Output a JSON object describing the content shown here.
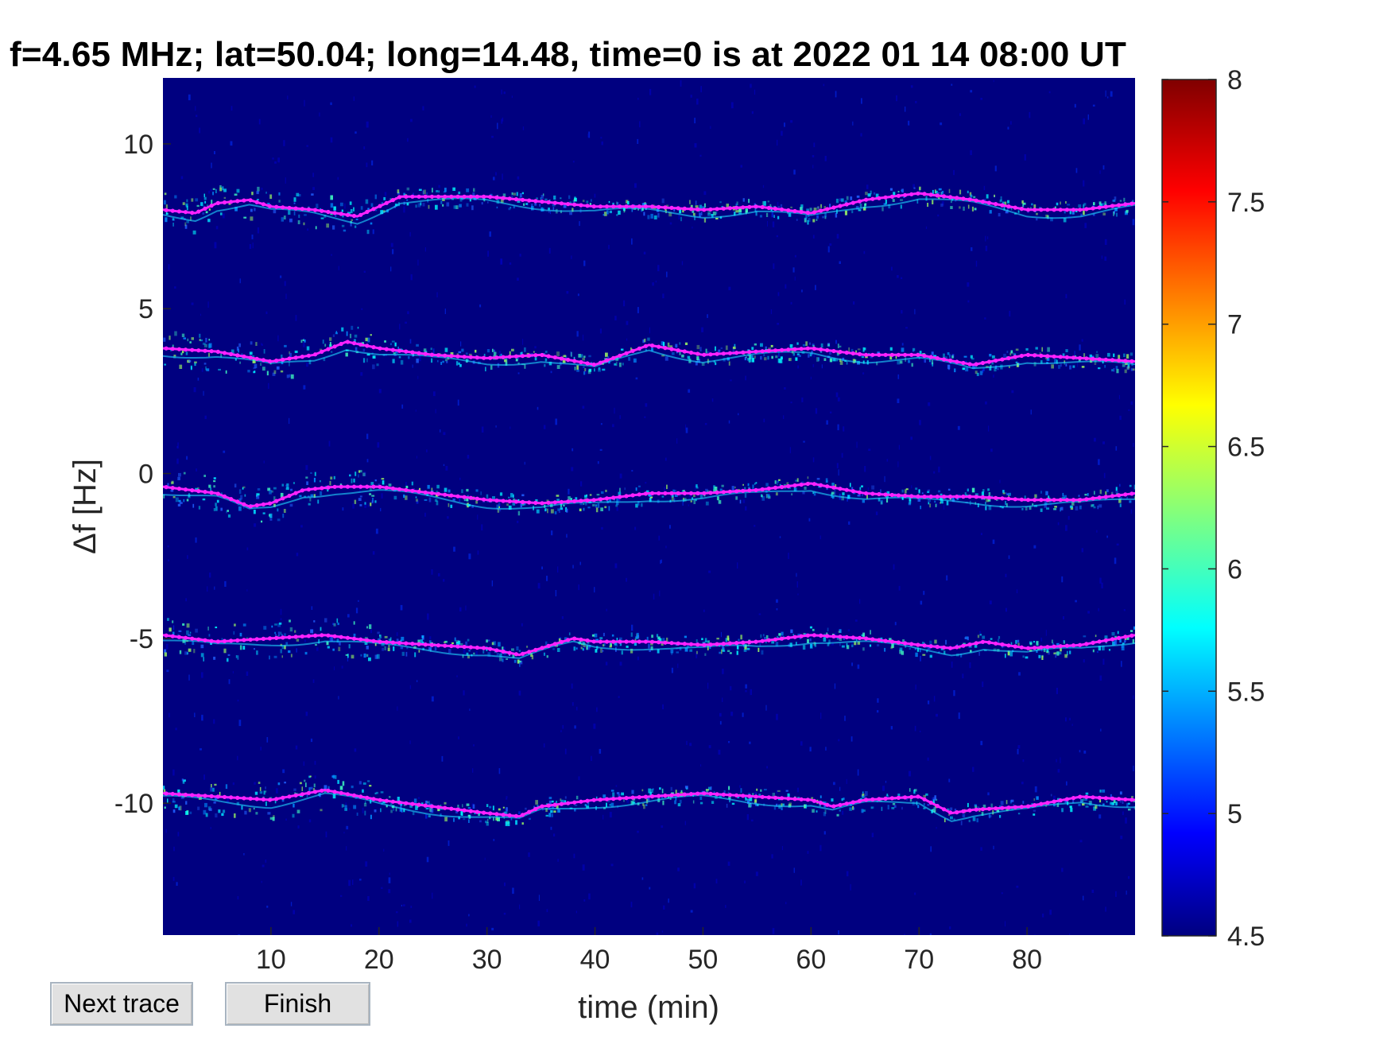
{
  "window": {
    "title": "f=4.65 MHz;  lat=50.04; long=14.48, time=0 is at 2022 01 14 08:00 UT"
  },
  "buttons": {
    "next_trace_label": "Next trace",
    "finish_label": "Finish"
  },
  "colors": {
    "background": "#000080",
    "trace": "#ff22ff",
    "colormap": [
      "#00008f",
      "#0000ff",
      "#0080ff",
      "#00ffff",
      "#80ff80",
      "#ffff00",
      "#ff8000",
      "#ff0000",
      "#800000"
    ]
  },
  "chart_data": {
    "type": "heatmap",
    "title": "f=4.65 MHz;  lat=50.04; long=14.48, time=0 is at 2022 01 14 08:00 UT",
    "xlabel": "time (min)",
    "ylabel": "Δf [Hz]",
    "xlim": [
      0,
      90
    ],
    "ylim": [
      -14,
      12
    ],
    "x_ticks": [
      10,
      20,
      30,
      40,
      50,
      60,
      70,
      80
    ],
    "y_ticks": [
      10,
      5,
      0,
      -5,
      -10
    ],
    "x_tick_labels": [
      "10",
      "20",
      "30",
      "40",
      "50",
      "60",
      "70",
      "80"
    ],
    "y_tick_labels": [
      "10",
      "5",
      "0",
      "-5",
      "-10"
    ],
    "colorbar": {
      "range": [
        4.5,
        8
      ],
      "ticks": [
        8,
        7.5,
        7,
        6.5,
        6,
        5.5,
        5,
        4.5
      ],
      "tick_labels": [
        "8",
        "7.5",
        "7",
        "6.5",
        "6",
        "5.5",
        "5",
        "4.5"
      ]
    },
    "series": [
      {
        "x": [
          0,
          3,
          5,
          8,
          10,
          14,
          18,
          22,
          30,
          40,
          45,
          50,
          55,
          60,
          65,
          70,
          75,
          80,
          85,
          90
        ],
        "y": [
          8.0,
          7.9,
          8.2,
          8.3,
          8.1,
          8.0,
          7.8,
          8.4,
          8.4,
          8.1,
          8.1,
          8.0,
          8.1,
          7.9,
          8.3,
          8.5,
          8.3,
          8.0,
          8.0,
          8.2
        ]
      },
      {
        "x": [
          0,
          5,
          10,
          14,
          17,
          20,
          25,
          30,
          35,
          40,
          45,
          50,
          55,
          60,
          65,
          70,
          75,
          80,
          85,
          90
        ],
        "y": [
          3.8,
          3.7,
          3.4,
          3.6,
          4.0,
          3.8,
          3.6,
          3.5,
          3.6,
          3.3,
          3.9,
          3.6,
          3.7,
          3.8,
          3.6,
          3.6,
          3.3,
          3.6,
          3.5,
          3.4
        ]
      },
      {
        "x": [
          0,
          5,
          8,
          10,
          13,
          16,
          20,
          25,
          30,
          35,
          40,
          45,
          50,
          55,
          60,
          65,
          70,
          75,
          80,
          85,
          90
        ],
        "y": [
          -0.4,
          -0.6,
          -1.0,
          -0.9,
          -0.5,
          -0.4,
          -0.4,
          -0.6,
          -0.8,
          -0.9,
          -0.8,
          -0.6,
          -0.6,
          -0.5,
          -0.3,
          -0.6,
          -0.7,
          -0.7,
          -0.8,
          -0.8,
          -0.6
        ]
      },
      {
        "x": [
          0,
          5,
          10,
          15,
          20,
          25,
          30,
          33,
          36,
          38,
          40,
          45,
          50,
          55,
          60,
          65,
          70,
          73,
          76,
          80,
          85,
          90
        ],
        "y": [
          -4.9,
          -5.1,
          -5.0,
          -4.9,
          -5.1,
          -5.2,
          -5.3,
          -5.5,
          -5.2,
          -5.0,
          -5.1,
          -5.1,
          -5.2,
          -5.1,
          -4.9,
          -5.0,
          -5.2,
          -5.3,
          -5.1,
          -5.3,
          -5.2,
          -4.9
        ]
      },
      {
        "x": [
          0,
          5,
          10,
          15,
          20,
          25,
          30,
          33,
          35,
          40,
          45,
          50,
          55,
          60,
          62,
          65,
          70,
          73,
          75,
          80,
          85,
          90
        ],
        "y": [
          -9.7,
          -9.8,
          -9.9,
          -9.6,
          -9.9,
          -10.1,
          -10.3,
          -10.4,
          -10.1,
          -9.9,
          -9.8,
          -9.7,
          -9.8,
          -9.9,
          -10.1,
          -9.9,
          -9.8,
          -10.3,
          -10.2,
          -10.1,
          -9.8,
          -9.9
        ]
      }
    ]
  }
}
